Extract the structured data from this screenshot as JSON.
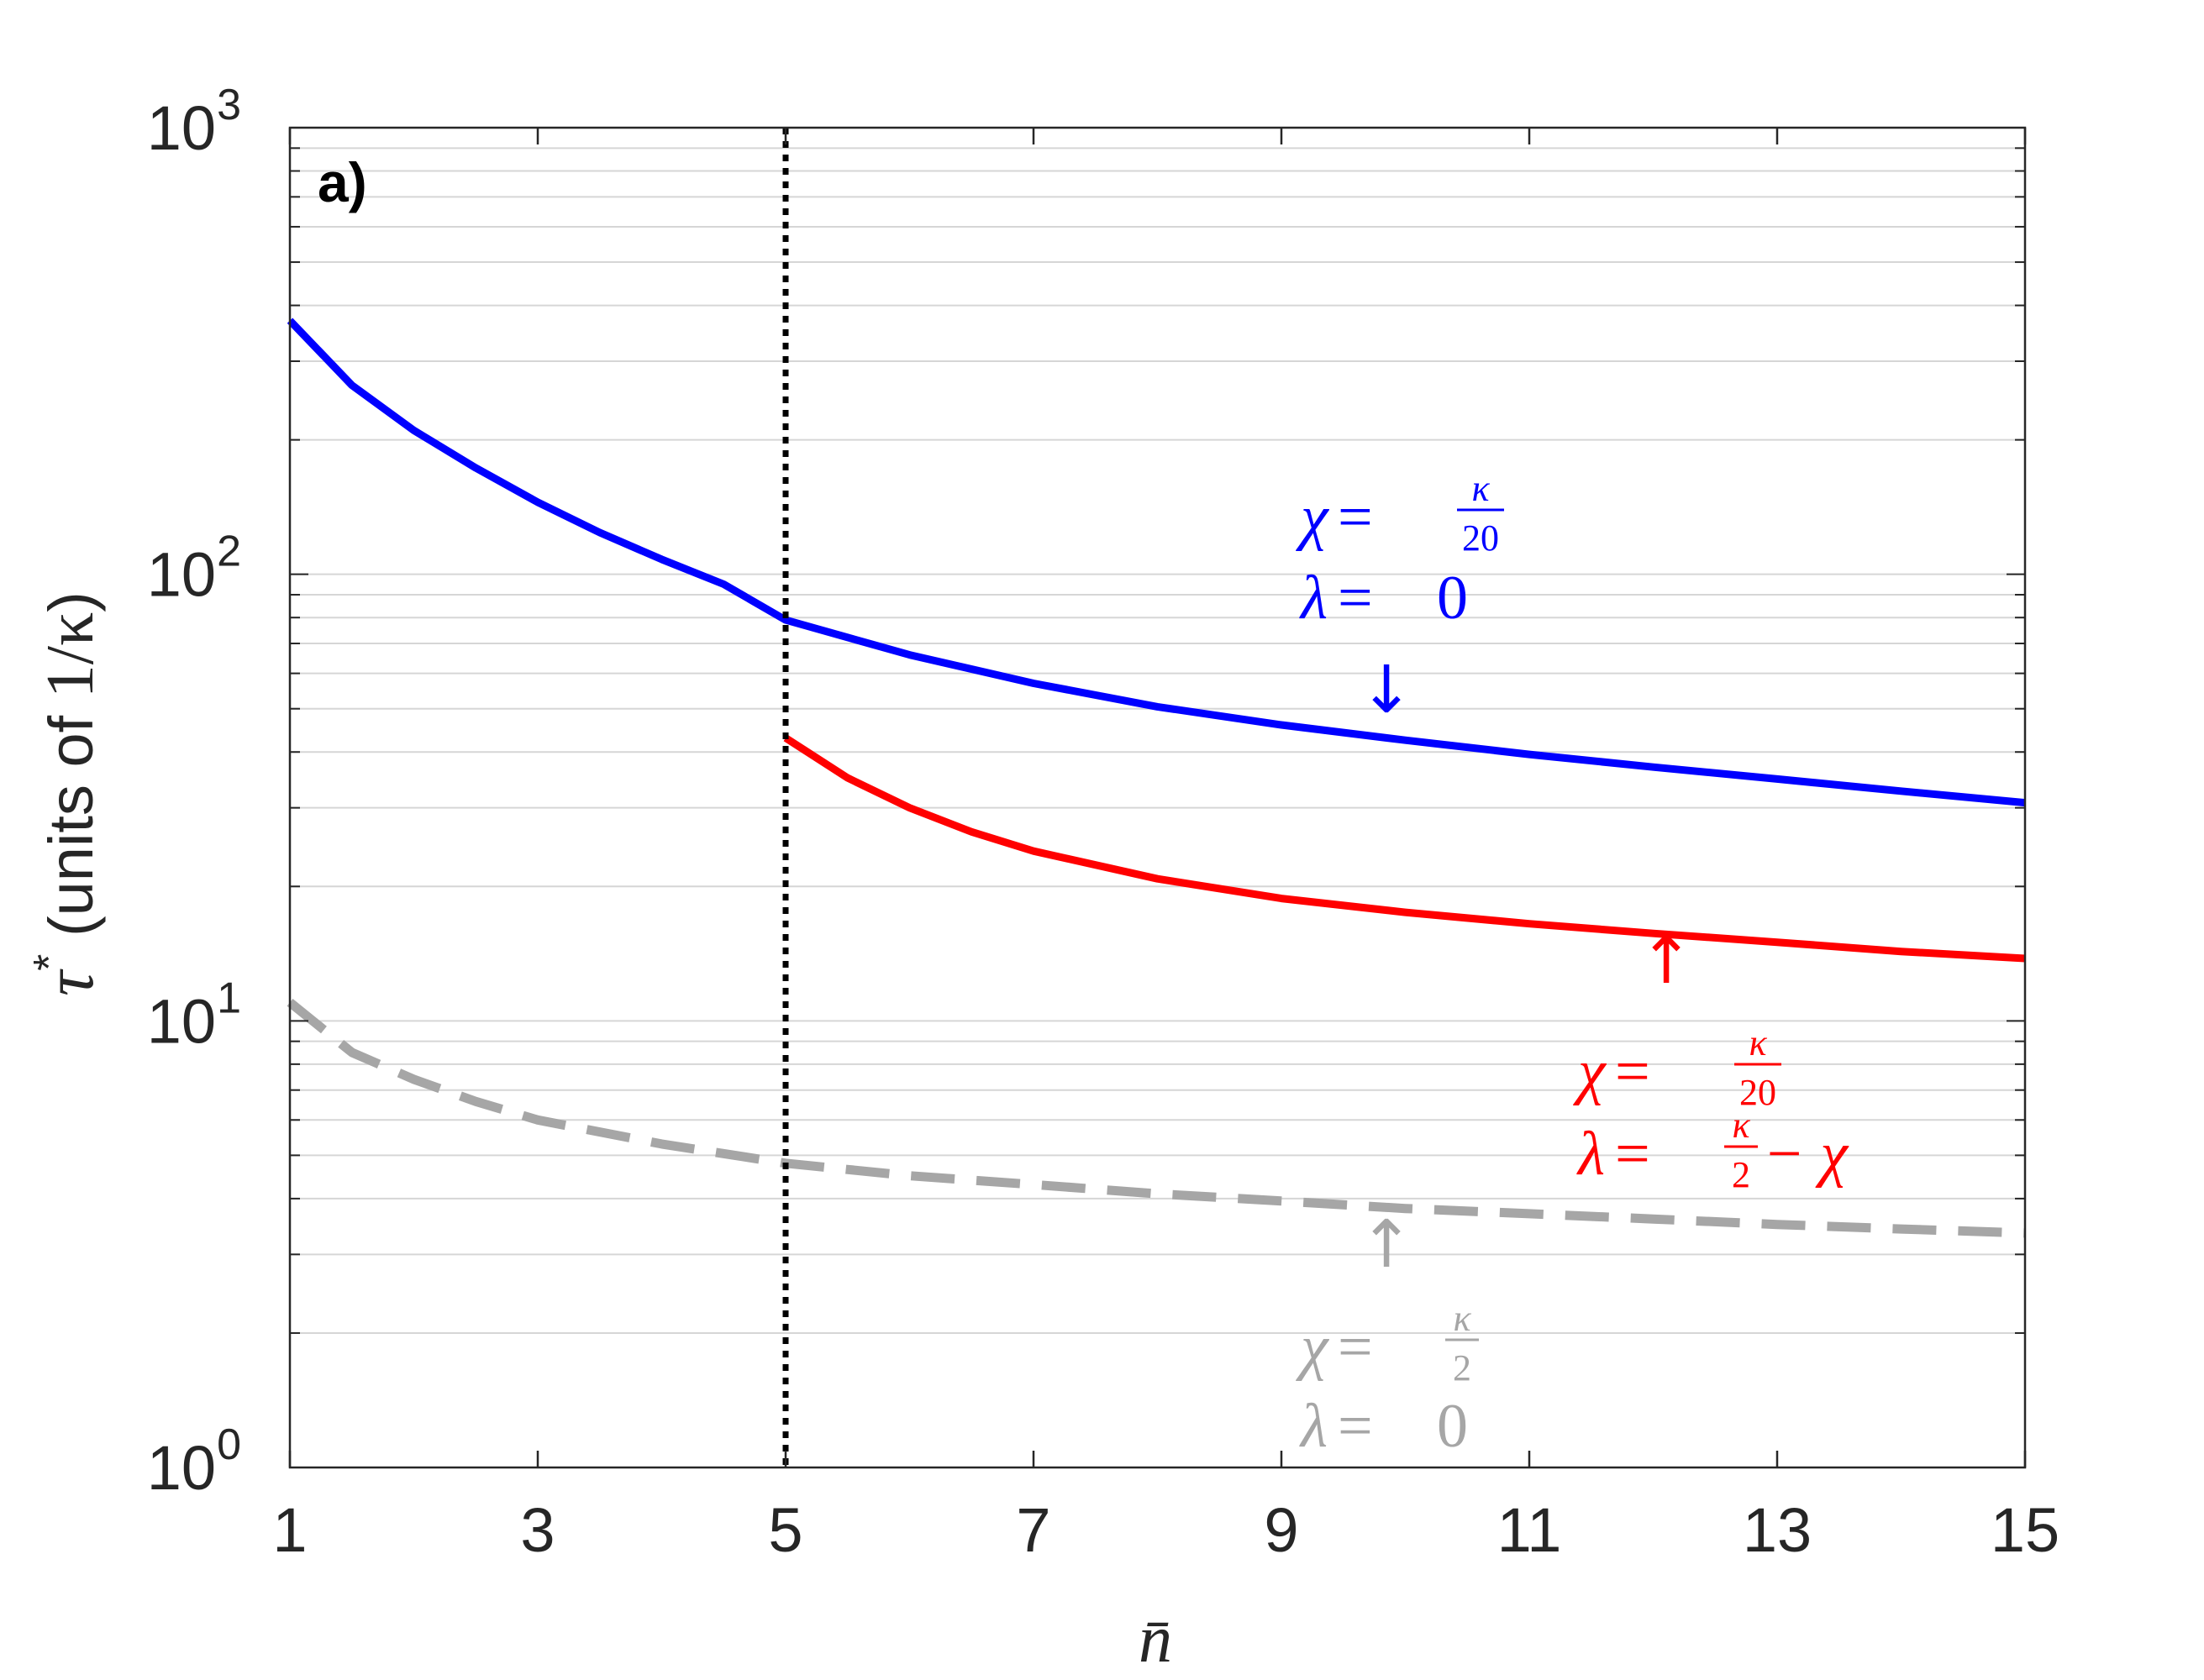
{
  "chart_data": {
    "type": "line",
    "panel_label": "a)",
    "xlabel": "n̄",
    "ylabel": {
      "symbol": "τ",
      "superscript": "*",
      "text": " (units of ",
      "unit": "1/κ",
      "close": ")"
    },
    "xlim": [
      1,
      15
    ],
    "ylim": [
      1,
      1000
    ],
    "yscale": "log",
    "grid": "horizontal minor",
    "x_ticks": [
      "1",
      "3",
      "5",
      "7",
      "9",
      "11",
      "13",
      "15"
    ],
    "x_tick_values": [
      1,
      3,
      5,
      7,
      9,
      11,
      13,
      15
    ],
    "y_ticks": [
      {
        "value": 1,
        "base": "10",
        "exp": "0"
      },
      {
        "value": 10,
        "base": "10",
        "exp": "1"
      },
      {
        "value": 100,
        "base": "10",
        "exp": "2"
      },
      {
        "value": 1000,
        "base": "10",
        "exp": "3"
      }
    ],
    "vertical_line": {
      "x": 5,
      "style": "dotted",
      "color": "#000000"
    },
    "series": [
      {
        "color": "#0000ff",
        "style": "solid",
        "x": [
          1,
          1.5,
          2,
          2.5,
          3,
          3.5,
          4,
          4.5,
          5,
          6,
          7,
          8,
          9,
          10,
          11,
          12,
          13,
          14,
          15
        ],
        "y": [
          370,
          265,
          210,
          173,
          145,
          124,
          108,
          95,
          79,
          66,
          57,
          50.5,
          46,
          42.5,
          39.5,
          37,
          34.8,
          32.7,
          30.8
        ]
      },
      {
        "color": "#ff0000",
        "style": "solid",
        "x": [
          5,
          5.5,
          6,
          6.5,
          7,
          8,
          9,
          10,
          11,
          12,
          13,
          14,
          15
        ],
        "y": [
          43,
          35,
          30,
          26.5,
          24,
          20.8,
          18.8,
          17.5,
          16.5,
          15.7,
          15,
          14.3,
          13.8
        ]
      },
      {
        "color": "#a6a6a6",
        "style": "dashed",
        "x": [
          1,
          1.5,
          2,
          2.5,
          3,
          4,
          5,
          6,
          7,
          8,
          9,
          10,
          11,
          12,
          13,
          14,
          15
        ],
        "y": [
          11,
          8.5,
          7.4,
          6.6,
          6.0,
          5.3,
          4.8,
          4.5,
          4.3,
          4.1,
          3.95,
          3.8,
          3.7,
          3.6,
          3.5,
          3.42,
          3.35
        ]
      }
    ],
    "annotations": [
      {
        "color": "#0000ff",
        "arrow": "↓",
        "line1": {
          "lhs": "χ",
          "eq": " = ",
          "num": "κ",
          "den": "20"
        },
        "line2": {
          "lhs": "λ",
          "eq": " = ",
          "rhs": "0"
        }
      },
      {
        "color": "#ff0000",
        "arrow": "↑",
        "line1": {
          "lhs": "χ",
          "eq": " = ",
          "num": "κ",
          "den": "20"
        },
        "line2": {
          "lhs": "λ",
          "eq": " = ",
          "num": "κ",
          "den": "2",
          "rest": " − χ"
        }
      },
      {
        "color": "#a6a6a6",
        "arrow": "↑",
        "line1": {
          "lhs": "χ",
          "eq": " = ",
          "num": "κ",
          "den": "2"
        },
        "line2": {
          "lhs": "λ",
          "eq": " = ",
          "rhs": "0"
        }
      }
    ]
  }
}
